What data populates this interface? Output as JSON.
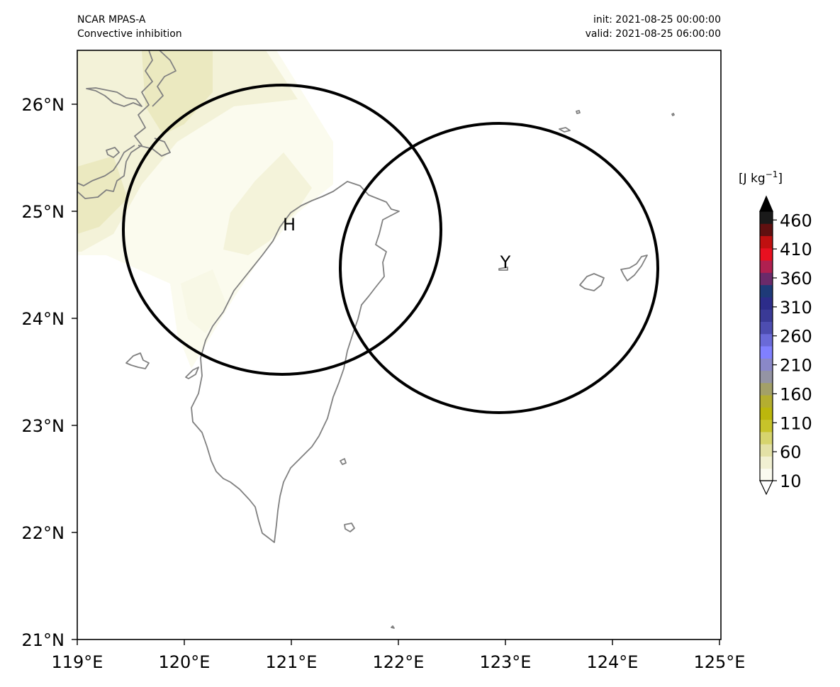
{
  "header": {
    "model": "NCAR MPAS-A",
    "field": "Convective inhibition",
    "init": "init: 2021-08-25 00:00:00",
    "valid": "valid: 2021-08-25 06:00:00"
  },
  "map": {
    "lon_range": [
      119,
      125
    ],
    "lat_range": [
      21,
      26.5
    ],
    "lon_ticks": [
      "119°E",
      "120°E",
      "121°E",
      "122°E",
      "123°E",
      "124°E",
      "125°E"
    ],
    "lat_ticks": [
      "21°N",
      "22°N",
      "23°N",
      "24°N",
      "25°N",
      "26°N"
    ],
    "coastline_color": "#808080"
  },
  "markers": [
    {
      "label": "H",
      "lon": 121.0,
      "lat": 24.85,
      "circle_center": [
        120.9,
        24.83
      ]
    },
    {
      "label": "Y",
      "lon": 123.0,
      "lat": 24.47,
      "circle_center": [
        122.93,
        24.46
      ]
    }
  ],
  "colorbar": {
    "units_base": "[J kg",
    "units_exp": "−1",
    "units_close": "]",
    "tick_labels": [
      "10",
      "60",
      "110",
      "160",
      "210",
      "260",
      "310",
      "360",
      "410",
      "460"
    ],
    "colors": [
      "#fbfbf0",
      "#f1f0d2",
      "#e3e1a6",
      "#d6d46e",
      "#c7c32a",
      "#bcb70c",
      "#b4ae30",
      "#a3a068",
      "#9494a4",
      "#8a88c8",
      "#8080ff",
      "#6a6ad8",
      "#4d4db0",
      "#3a3a96",
      "#2c2c8a",
      "#1e3a78",
      "#6a2a6a",
      "#b02050",
      "#e81020",
      "#c01010",
      "#601010",
      "#1a1a1a"
    ]
  }
}
